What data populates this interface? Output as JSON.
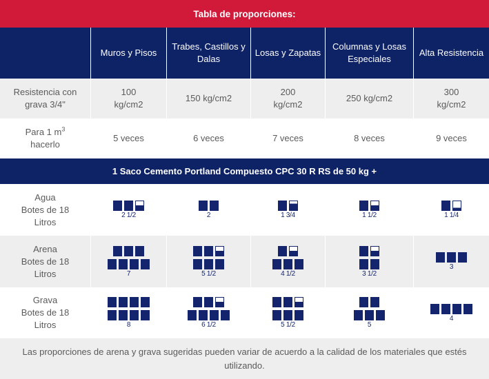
{
  "title": "Tabla de proporciones:",
  "columns": [
    "",
    "Muros y Pisos",
    "Trabes, Castillos y Dalas",
    "Losas y Zapatas",
    "Columnas y Losas Especiales",
    "Alta Resistencia"
  ],
  "resistencia": {
    "label": "Resistencia con grava 3/4\"",
    "values": [
      "100 kg/cm2",
      "150 kg/cm2",
      "200 kg/cm2",
      "250 kg/cm2",
      "300 kg/cm2"
    ]
  },
  "para": {
    "label": "Para 1 m",
    "label_sup": "3",
    "label_rest": "hacerlo",
    "values": [
      "5 veces",
      "6 veces",
      "7 veces",
      "8 veces",
      "9 veces"
    ]
  },
  "saco": "1 Saco Cemento Portland Compuesto CPC 30 R RS de 50 kg +",
  "agua": {
    "label": [
      "Agua",
      "Botes de 18",
      "Litros"
    ],
    "quantities": [
      "2 1/2",
      "2",
      "1 3/4",
      "1 1/2",
      "1 1/4"
    ]
  },
  "arena": {
    "label": [
      "Arena",
      "Botes de 18",
      "Litros"
    ],
    "quantities": [
      "7",
      "5 1/2",
      "4 1/2",
      "3 1/2",
      "3"
    ]
  },
  "grava": {
    "label": [
      "Grava",
      "Botes de 18",
      "Litros"
    ],
    "quantities": [
      "8",
      "6 1/2",
      "5 1/2",
      "5",
      "4"
    ]
  },
  "footer": "Las proporciones de arena y grava sugeridas pueden variar de acuerdo a la calidad de los materiales que estés utilizando.",
  "colors": {
    "red": "#d11a3a",
    "navy": "#0e2266",
    "grey": "#eeeeee"
  },
  "icons": {
    "bucket": "bucket-icon"
  }
}
